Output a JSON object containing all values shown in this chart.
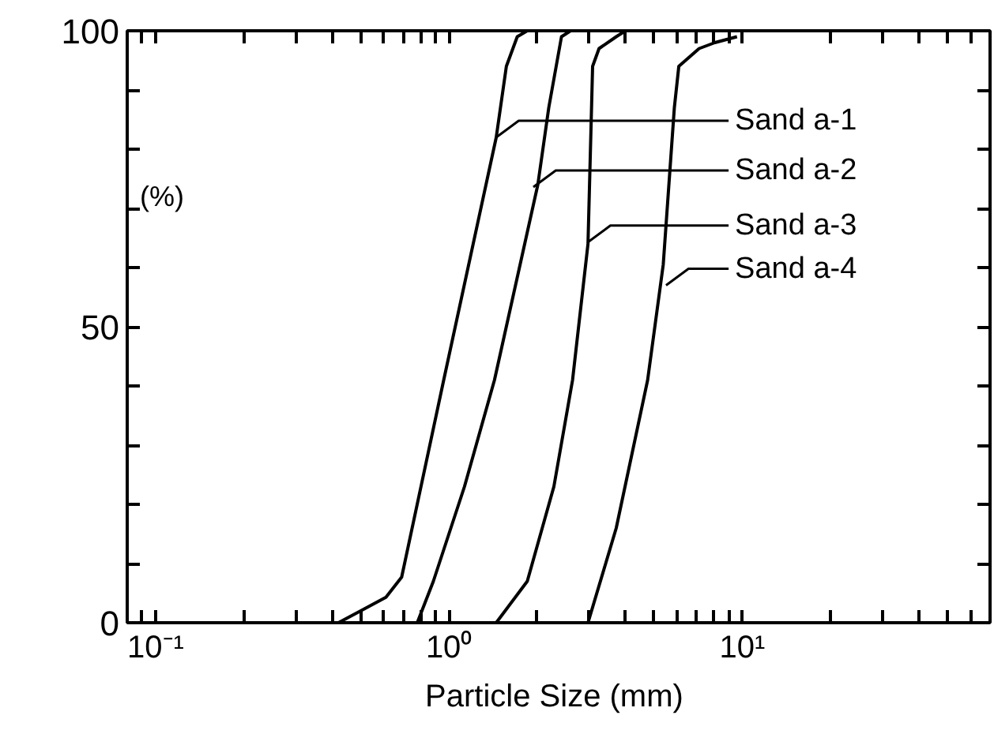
{
  "chart_data": {
    "type": "line",
    "xlabel": "Particle Size  (mm)",
    "ylabel": "(%)",
    "log": "x",
    "grid": false,
    "marker": "none",
    "line_style": "solid",
    "xlim": [
      0.08,
      70
    ],
    "ylim": [
      0,
      100
    ],
    "xticks": [
      {
        "value": 0.08,
        "label": null
      },
      {
        "value": 0.09,
        "label": null
      },
      {
        "value": 0.1,
        "label": "10⁻¹"
      },
      {
        "value": 0.2,
        "label": null
      },
      {
        "value": 0.3,
        "label": null
      },
      {
        "value": 0.4,
        "label": null
      },
      {
        "value": 0.5,
        "label": null
      },
      {
        "value": 0.6,
        "label": null
      },
      {
        "value": 0.7,
        "label": null
      },
      {
        "value": 0.8,
        "label": null
      },
      {
        "value": 0.9,
        "label": null
      },
      {
        "value": 1,
        "label": "10⁰"
      },
      {
        "value": 2,
        "label": null
      },
      {
        "value": 3,
        "label": null
      },
      {
        "value": 4,
        "label": null
      },
      {
        "value": 5,
        "label": null
      },
      {
        "value": 6,
        "label": null
      },
      {
        "value": 7,
        "label": null
      },
      {
        "value": 8,
        "label": null
      },
      {
        "value": 9,
        "label": null
      },
      {
        "value": 10,
        "label": "10¹"
      },
      {
        "value": 20,
        "label": null
      },
      {
        "value": 30,
        "label": null
      },
      {
        "value": 40,
        "label": null
      },
      {
        "value": 50,
        "label": null
      },
      {
        "value": 60,
        "label": null
      }
    ],
    "yticks": [
      0,
      {
        "value": 10,
        "label": null
      },
      {
        "value": 20,
        "label": null
      },
      {
        "value": 30,
        "label": null
      },
      {
        "value": 40,
        "label": null
      },
      50,
      {
        "value": 60,
        "label": null
      },
      {
        "value": 70,
        "label": null
      },
      {
        "value": 80,
        "label": null
      },
      {
        "value": 90,
        "label": null
      },
      100
    ],
    "series": [
      {
        "color": "#000000",
        "x": [
          0.42,
          0.5,
          0.61,
          0.69,
          0.96,
          1.45,
          1.57,
          1.71,
          1.85
        ],
        "values": [
          0,
          2,
          4.3,
          7.7,
          41,
          82,
          94,
          99,
          100
        ]
      },
      {
        "color": "#000000",
        "x": [
          0.78,
          0.885,
          1.13,
          1.43,
          2.01,
          2.19,
          2.42,
          2.6
        ],
        "values": [
          0,
          7,
          23,
          41,
          74,
          87,
          99,
          100
        ]
      },
      {
        "color": "#000000",
        "x": [
          1.45,
          1.85,
          2.28,
          2.64,
          2.98,
          3.09,
          3.25,
          3.72,
          4.0
        ],
        "values": [
          0,
          7,
          23,
          41,
          64,
          94,
          97,
          99,
          100
        ]
      },
      {
        "color": "#000000",
        "x": [
          2.98,
          3.72,
          4.76,
          5.38,
          5.87,
          6.08,
          7.13,
          8.07,
          9.6
        ],
        "values": [
          0,
          16,
          41,
          60.5,
          87,
          94,
          97,
          98,
          99
        ]
      }
    ],
    "annotations": [
      {
        "text": "Sand a-1",
        "x": 1.45,
        "y": 82
      },
      {
        "text": "Sand a-2",
        "x": 1.94,
        "y": 73.6
      },
      {
        "text": "Sand a-3",
        "x": 2.98,
        "y": 64.3
      },
      {
        "text": "Sand a-4",
        "x": 5.5,
        "y": 57
      }
    ]
  }
}
